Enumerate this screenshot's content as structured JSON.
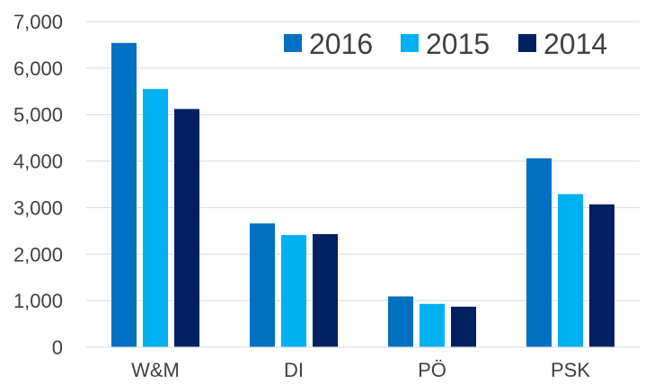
{
  "chart_data": {
    "type": "bar",
    "title": "",
    "xlabel": "",
    "ylabel": "",
    "categories": [
      "W&M",
      "DI",
      "PÖ",
      "PSK"
    ],
    "series": [
      {
        "name": "2016",
        "color": "#0070C0",
        "values": [
          6540,
          2660,
          1090,
          4060
        ]
      },
      {
        "name": "2015",
        "color": "#00B0F0",
        "values": [
          5550,
          2410,
          930,
          3290
        ]
      },
      {
        "name": "2014",
        "color": "#002060",
        "values": [
          5120,
          2430,
          870,
          3070
        ]
      }
    ],
    "ylim": [
      0,
      7000
    ],
    "yticks": [
      0,
      1000,
      2000,
      3000,
      4000,
      5000,
      6000,
      7000
    ],
    "ytick_labels": [
      "0",
      "1,000",
      "2,000",
      "3,000",
      "4,000",
      "5,000",
      "6,000",
      "7,000"
    ],
    "grid": true,
    "gridline_color": "#d9d9d9",
    "legend_position": "top-right"
  }
}
